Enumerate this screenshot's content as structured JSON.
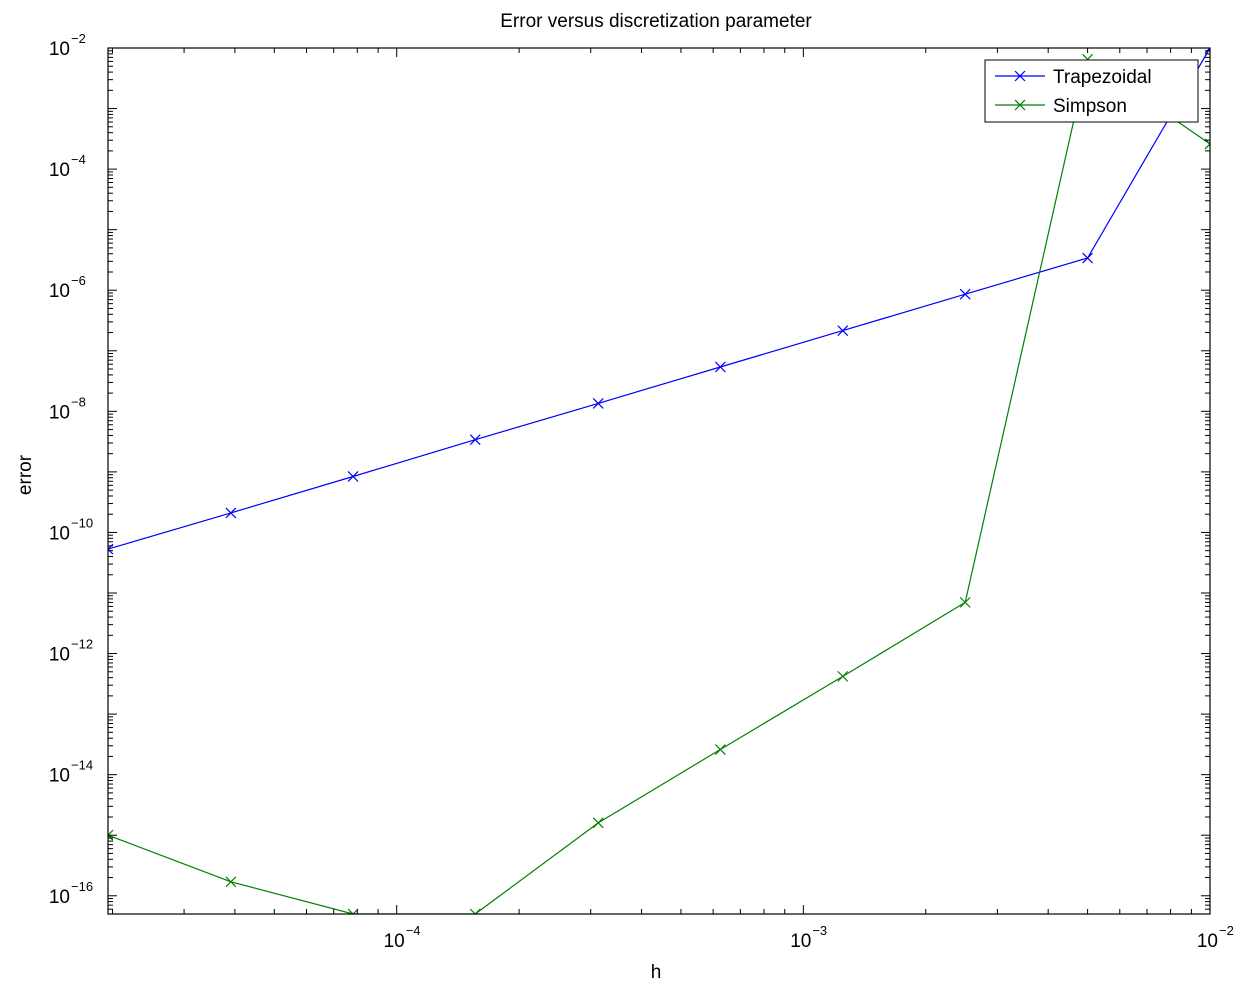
{
  "chart_data": {
    "type": "line",
    "title": "Error versus discretization parameter",
    "xlabel": "h",
    "ylabel": "error",
    "xscale": "log",
    "yscale": "log",
    "xlim": [
      1.95e-05,
      0.01
    ],
    "ylim": [
      5e-17,
      0.01
    ],
    "grid": false,
    "legend_position": "top-right",
    "x_ticks": [
      {
        "value": 0.0001,
        "base": "10",
        "exp": "−4"
      },
      {
        "value": 0.001,
        "base": "10",
        "exp": "−3"
      },
      {
        "value": 0.01,
        "base": "10",
        "exp": "−2"
      }
    ],
    "y_ticks": [
      {
        "value": 1e-16,
        "base": "10",
        "exp": "−16"
      },
      {
        "value": 1e-14,
        "base": "10",
        "exp": "−14"
      },
      {
        "value": 1e-12,
        "base": "10",
        "exp": "−12"
      },
      {
        "value": 1e-10,
        "base": "10",
        "exp": "−10"
      },
      {
        "value": 1e-08,
        "base": "10",
        "exp": "−8"
      },
      {
        "value": 1e-06,
        "base": "10",
        "exp": "−6"
      },
      {
        "value": 0.0001,
        "base": "10",
        "exp": "−4"
      },
      {
        "value": 0.01,
        "base": "10",
        "exp": "−2"
      }
    ],
    "series": [
      {
        "name": "Trapezoidal",
        "color": "#0000ff",
        "marker": "x",
        "points": [
          [
            1.95e-05,
            5.3e-11
          ],
          [
            3.91e-05,
            2.1e-10
          ],
          [
            7.81e-05,
            8.4e-10
          ],
          [
            0.000156,
            3.4e-09
          ],
          [
            0.000313,
            1.35e-08
          ],
          [
            0.000625,
            5.4e-08
          ],
          [
            0.00125,
            2.15e-07
          ],
          [
            0.0025,
            8.6e-07
          ],
          [
            0.005,
            3.4e-06
          ],
          [
            0.01,
            0.01
          ]
        ]
      },
      {
        "name": "Simpson",
        "color": "#008000",
        "marker": "x",
        "points": [
          [
            1.95e-05,
            1e-15
          ],
          [
            3.91e-05,
            1.7e-16
          ],
          [
            7.81e-05,
            5e-17
          ],
          [
            0.000156,
            5e-17
          ],
          [
            0.000313,
            1.6e-15
          ],
          [
            0.000625,
            2.6e-14
          ],
          [
            0.00125,
            4.2e-13
          ],
          [
            0.0025,
            7e-12
          ],
          [
            0.005,
            0.0065
          ],
          [
            0.01,
            0.00026
          ]
        ]
      }
    ]
  }
}
